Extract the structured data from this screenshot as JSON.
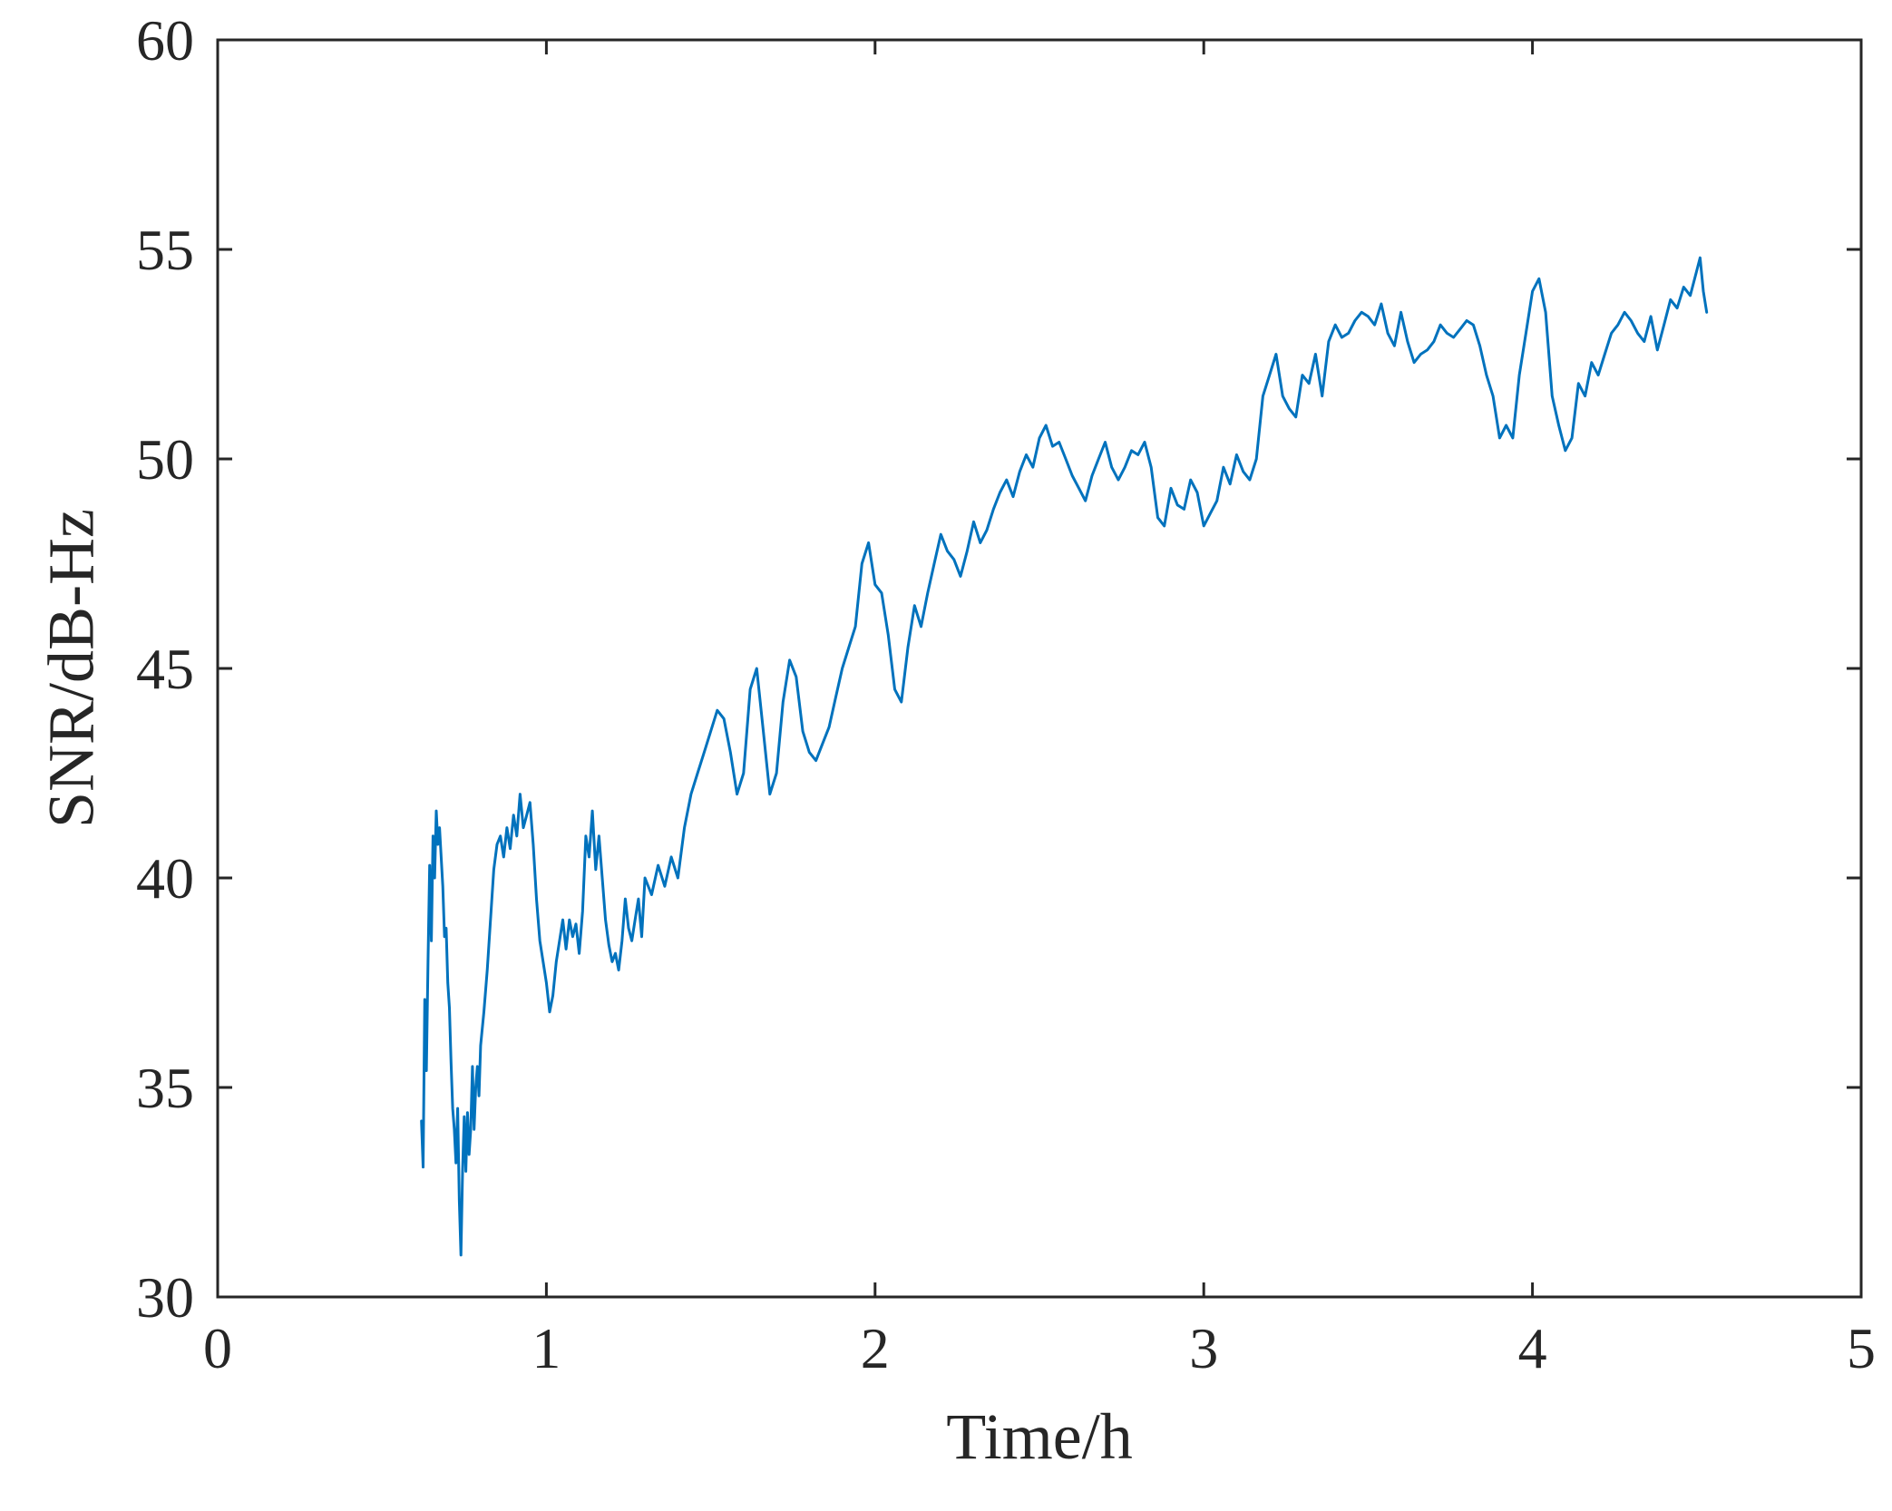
{
  "chart_data": {
    "type": "line",
    "title": "",
    "xlabel": "Time/h",
    "ylabel": "SNR/dB-Hz",
    "xlim": [
      0,
      5
    ],
    "ylim": [
      30,
      60
    ],
    "xticks": [
      0,
      1,
      2,
      3,
      4,
      5
    ],
    "xtick_labels": [
      "0",
      "1",
      "2",
      "3",
      "4",
      "5"
    ],
    "yticks": [
      30,
      35,
      40,
      45,
      50,
      55,
      60
    ],
    "ytick_labels": [
      "30",
      "35",
      "40",
      "45",
      "50",
      "55",
      "60"
    ],
    "grid": false,
    "legend": "none",
    "series": [
      {
        "color": "#0072BD",
        "x": [
          0.62,
          0.625,
          0.63,
          0.635,
          0.64,
          0.645,
          0.65,
          0.655,
          0.66,
          0.665,
          0.67,
          0.675,
          0.68,
          0.685,
          0.69,
          0.695,
          0.7,
          0.705,
          0.71,
          0.715,
          0.72,
          0.725,
          0.73,
          0.735,
          0.74,
          0.745,
          0.75,
          0.755,
          0.76,
          0.765,
          0.77,
          0.775,
          0.78,
          0.785,
          0.79,
          0.795,
          0.8,
          0.81,
          0.82,
          0.83,
          0.84,
          0.85,
          0.86,
          0.87,
          0.88,
          0.89,
          0.9,
          0.91,
          0.92,
          0.93,
          0.94,
          0.95,
          0.96,
          0.97,
          0.98,
          0.99,
          1.0,
          1.01,
          1.02,
          1.03,
          1.04,
          1.05,
          1.06,
          1.07,
          1.08,
          1.09,
          1.1,
          1.11,
          1.12,
          1.13,
          1.14,
          1.15,
          1.16,
          1.17,
          1.18,
          1.19,
          1.2,
          1.21,
          1.22,
          1.23,
          1.24,
          1.25,
          1.26,
          1.27,
          1.28,
          1.29,
          1.3,
          1.32,
          1.34,
          1.36,
          1.38,
          1.4,
          1.42,
          1.44,
          1.46,
          1.48,
          1.5,
          1.52,
          1.54,
          1.56,
          1.58,
          1.6,
          1.62,
          1.64,
          1.66,
          1.68,
          1.7,
          1.72,
          1.74,
          1.76,
          1.78,
          1.8,
          1.82,
          1.84,
          1.86,
          1.88,
          1.9,
          1.92,
          1.94,
          1.96,
          1.98,
          2.0,
          2.02,
          2.04,
          2.06,
          2.08,
          2.1,
          2.12,
          2.14,
          2.16,
          2.18,
          2.2,
          2.22,
          2.24,
          2.26,
          2.28,
          2.3,
          2.32,
          2.34,
          2.36,
          2.38,
          2.4,
          2.42,
          2.44,
          2.46,
          2.48,
          2.5,
          2.52,
          2.54,
          2.56,
          2.58,
          2.6,
          2.62,
          2.64,
          2.66,
          2.68,
          2.7,
          2.72,
          2.74,
          2.76,
          2.78,
          2.8,
          2.82,
          2.84,
          2.86,
          2.88,
          2.9,
          2.92,
          2.94,
          2.96,
          2.98,
          3.0,
          3.02,
          3.04,
          3.06,
          3.08,
          3.1,
          3.12,
          3.14,
          3.16,
          3.18,
          3.2,
          3.22,
          3.24,
          3.26,
          3.28,
          3.3,
          3.32,
          3.34,
          3.36,
          3.38,
          3.4,
          3.42,
          3.44,
          3.46,
          3.48,
          3.5,
          3.52,
          3.54,
          3.56,
          3.58,
          3.6,
          3.62,
          3.64,
          3.66,
          3.68,
          3.7,
          3.72,
          3.74,
          3.76,
          3.78,
          3.8,
          3.82,
          3.84,
          3.86,
          3.88,
          3.9,
          3.92,
          3.94,
          3.96,
          3.98,
          4.0,
          4.02,
          4.04,
          4.06,
          4.08,
          4.1,
          4.12,
          4.14,
          4.16,
          4.18,
          4.2,
          4.22,
          4.24,
          4.26,
          4.28,
          4.3,
          4.32,
          4.34,
          4.36,
          4.38,
          4.4,
          4.42,
          4.44,
          4.46,
          4.48,
          4.5,
          4.51,
          4.52,
          4.53
        ],
        "y": [
          34.2,
          33.1,
          37.1,
          35.4,
          38.0,
          40.3,
          38.5,
          41.0,
          40.0,
          41.6,
          40.8,
          41.2,
          40.5,
          39.8,
          38.6,
          38.8,
          37.5,
          36.9,
          35.6,
          34.5,
          34.0,
          33.2,
          34.5,
          32.3,
          31.0,
          33.0,
          34.3,
          33.0,
          34.4,
          33.4,
          34.0,
          35.5,
          34.0,
          35.0,
          35.5,
          34.8,
          36.0,
          36.8,
          37.8,
          39.0,
          40.2,
          40.8,
          41.0,
          40.5,
          41.2,
          40.7,
          41.5,
          41.0,
          42.0,
          41.2,
          41.5,
          41.8,
          40.8,
          39.5,
          38.5,
          38.0,
          37.5,
          36.8,
          37.2,
          38.0,
          38.5,
          39.0,
          38.3,
          39.0,
          38.6,
          38.9,
          38.2,
          39.2,
          41.0,
          40.5,
          41.6,
          40.2,
          41.0,
          40.0,
          39.0,
          38.4,
          38.0,
          38.2,
          37.8,
          38.5,
          39.5,
          38.8,
          38.5,
          39.0,
          39.5,
          38.6,
          40.0,
          39.6,
          40.3,
          39.8,
          40.5,
          40.0,
          41.2,
          42.0,
          42.5,
          43.0,
          43.5,
          44.0,
          43.8,
          43.0,
          42.0,
          42.5,
          44.5,
          45.0,
          43.5,
          42.0,
          42.5,
          44.2,
          45.2,
          44.8,
          43.5,
          43.0,
          42.8,
          43.2,
          43.6,
          44.3,
          45.0,
          45.5,
          46.0,
          47.5,
          48.0,
          47.0,
          46.8,
          45.8,
          44.5,
          44.2,
          45.5,
          46.5,
          46.0,
          46.8,
          47.5,
          48.2,
          47.8,
          47.6,
          47.2,
          47.8,
          48.5,
          48.0,
          48.3,
          48.8,
          49.2,
          49.5,
          49.1,
          49.7,
          50.1,
          49.8,
          50.5,
          50.8,
          50.3,
          50.4,
          50.0,
          49.6,
          49.3,
          49.0,
          49.6,
          50.0,
          50.4,
          49.8,
          49.5,
          49.8,
          50.2,
          50.1,
          50.4,
          49.8,
          48.6,
          48.4,
          49.3,
          48.9,
          48.8,
          49.5,
          49.2,
          48.4,
          48.7,
          49.0,
          49.8,
          49.4,
          50.1,
          49.7,
          49.5,
          50.0,
          51.5,
          52.0,
          52.5,
          51.5,
          51.2,
          51.0,
          52.0,
          51.8,
          52.5,
          51.5,
          52.8,
          53.2,
          52.9,
          53.0,
          53.3,
          53.5,
          53.4,
          53.2,
          53.7,
          53.0,
          52.7,
          53.5,
          52.8,
          52.3,
          52.5,
          52.6,
          52.8,
          53.2,
          53.0,
          52.9,
          53.1,
          53.3,
          53.2,
          52.7,
          52.0,
          51.5,
          50.5,
          50.8,
          50.5,
          52.0,
          53.0,
          54.0,
          54.3,
          53.5,
          51.5,
          50.8,
          50.2,
          50.5,
          51.8,
          51.5,
          52.3,
          52.0,
          52.5,
          53.0,
          53.2,
          53.5,
          53.3,
          53.0,
          52.8,
          53.4,
          52.6,
          53.2,
          53.8,
          53.6,
          54.1,
          53.9,
          54.5,
          54.8,
          54.0,
          53.5
        ]
      }
    ]
  }
}
